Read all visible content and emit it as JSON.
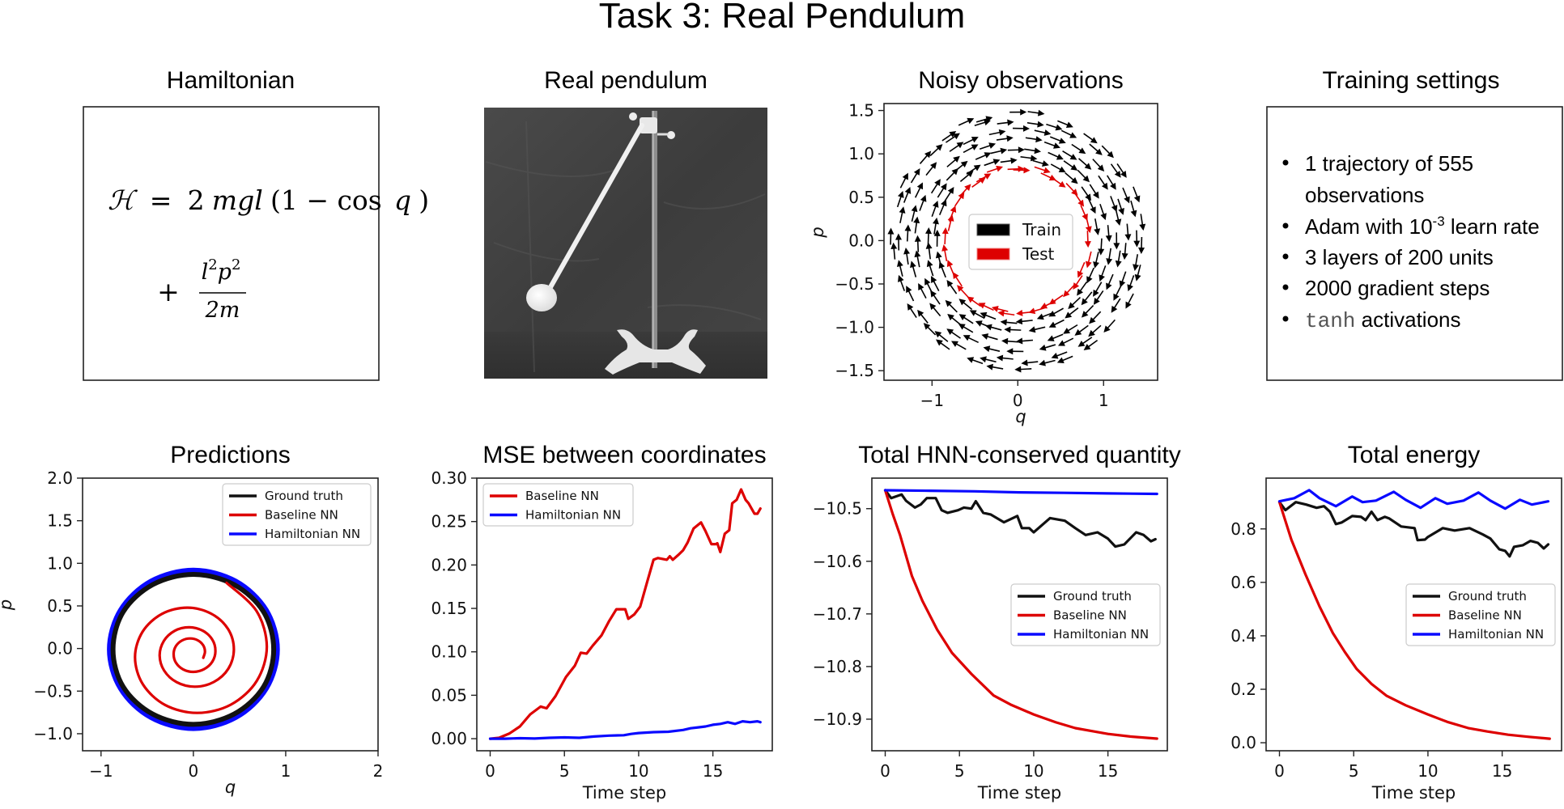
{
  "figure": {
    "suptitle": "Task 3: Real Pendulum"
  },
  "panels": {
    "hamiltonian": {
      "title": "Hamiltonian",
      "formula": {
        "line1": {
          "lhs": "ℋ",
          "eq": "=",
          "two": "2",
          "vars": "mgl",
          "open": "(1 − ",
          "cos": "cos",
          "q": "q",
          "close": ")"
        },
        "line2": {
          "plus": "+",
          "numerator_l": "l",
          "numerator_l_exp": "2",
          "numerator_p": "p",
          "numerator_p_exp": "2",
          "denominator": "2m"
        }
      }
    },
    "real_pendulum": {
      "title": "Real pendulum",
      "image_alt": "Photo of a real pendulum on a stand"
    },
    "training_settings": {
      "title": "Training settings",
      "items": [
        {
          "text": "1 trajectory of 555",
          "continuation": "observations"
        },
        {
          "text": "Adam with 10",
          "sup": "-3",
          "after": " learn rate"
        },
        {
          "text": "3 layers of 200 units"
        },
        {
          "text": "2000 gradient steps"
        },
        {
          "mono": "tanh",
          "after": " activations"
        }
      ]
    }
  },
  "colors": {
    "ground_truth": "#111111",
    "baseline": "#dd0000",
    "hamiltonian": "#0a0aff",
    "train": "#000000",
    "test": "#dd0000"
  },
  "chart_data": [
    {
      "id": "noisy",
      "type": "quiver",
      "title": "Noisy observations",
      "xlabel": "q",
      "ylabel": "p",
      "xlim": [
        -1.56,
        1.63
      ],
      "ylim": [
        -1.61,
        1.58
      ],
      "xticks": [
        -1,
        0,
        1
      ],
      "xtick_labels": [
        "−1",
        "0",
        "1"
      ],
      "yticks": [
        1.5,
        1.0,
        0.5,
        0.0,
        -0.5,
        -1.0,
        -1.5
      ],
      "ytick_labels": [
        "1.5",
        "1.0",
        "0.5",
        "0.0",
        "−0.5",
        "−1.0",
        "−1.5"
      ],
      "legend": {
        "position": "center",
        "entries": [
          "Train",
          "Test"
        ]
      },
      "series": [
        {
          "name": "Train",
          "color_key": "train",
          "ring_radii": [
            0.95,
            1.06,
            1.17,
            1.28,
            1.39,
            1.47
          ],
          "arrows_per_ring": 30
        },
        {
          "name": "Test",
          "color_key": "test",
          "ring_radii": [
            0.84
          ],
          "arrows_per_ring": 34
        }
      ]
    },
    {
      "id": "predictions",
      "type": "line",
      "title": "Predictions",
      "xlabel": "q",
      "ylabel": "p",
      "xlim": [
        -1.2,
        2.0
      ],
      "ylim": [
        -1.2,
        2.0
      ],
      "xticks": [
        -1,
        0,
        1,
        2
      ],
      "xtick_labels": [
        "−1",
        "0",
        "1",
        "2"
      ],
      "yticks": [
        2.0,
        1.5,
        1.0,
        0.5,
        0.0,
        -0.5,
        -1.0
      ],
      "ytick_labels": [
        "2.0",
        "1.5",
        "1.0",
        "0.5",
        "0.0",
        "−0.5",
        "−1.0"
      ],
      "legend": {
        "position": "top-right",
        "entries": [
          "Ground truth",
          "Baseline NN",
          "Hamiltonian NN"
        ]
      },
      "series": [
        {
          "name": "Hamiltonian NN",
          "color_key": "hamiltonian",
          "closed": true,
          "width": 6,
          "points": [
            [
              0.91,
              -0.01
            ],
            [
              0.79,
              0.45
            ],
            [
              0.46,
              0.79
            ],
            [
              0.0,
              0.92
            ],
            [
              -0.46,
              0.79
            ],
            [
              -0.79,
              0.45
            ],
            [
              -0.91,
              -0.01
            ],
            [
              -0.79,
              -0.47
            ],
            [
              -0.46,
              -0.81
            ],
            [
              0.0,
              -0.94
            ],
            [
              0.46,
              -0.81
            ],
            [
              0.79,
              -0.47
            ]
          ]
        },
        {
          "name": "Ground truth",
          "color_key": "ground_truth",
          "closed": true,
          "width": 6,
          "points": [
            [
              0.87,
              -0.01
            ],
            [
              0.76,
              0.43
            ],
            [
              0.44,
              0.75
            ],
            [
              0.0,
              0.87
            ],
            [
              -0.44,
              0.75
            ],
            [
              -0.76,
              0.43
            ],
            [
              -0.87,
              -0.01
            ],
            [
              -0.76,
              -0.45
            ],
            [
              -0.44,
              -0.77
            ],
            [
              0.0,
              -0.89
            ],
            [
              0.44,
              -0.77
            ],
            [
              0.76,
              -0.45
            ]
          ]
        },
        {
          "name": "Baseline NN",
          "color_key": "baseline",
          "closed": false,
          "width": 3.2,
          "points": [
            [
              0.36,
              0.77
            ],
            [
              0.683,
              0.442
            ],
            [
              0.795,
              0.021
            ],
            [
              0.687,
              -0.38
            ],
            [
              0.406,
              -0.659
            ],
            [
              0.042,
              -0.756
            ],
            [
              -0.306,
              -0.663
            ],
            [
              -0.547,
              -0.42
            ],
            [
              -0.632,
              -0.103
            ],
            [
              -0.55,
              0.197
            ],
            [
              -0.34,
              0.407
            ],
            [
              -0.066,
              0.48
            ],
            [
              0.194,
              0.409
            ],
            [
              0.376,
              0.228
            ],
            [
              0.439,
              -0.01
            ],
            [
              0.379,
              -0.236
            ],
            [
              0.221,
              -0.393
            ],
            [
              0.015,
              -0.448
            ],
            [
              -0.181,
              -0.395
            ],
            [
              -0.317,
              -0.258
            ],
            [
              -0.365,
              -0.08
            ],
            [
              -0.319,
              0.09
            ],
            [
              -0.201,
              0.208
            ],
            [
              -0.046,
              0.249
            ],
            [
              0.101,
              0.209
            ],
            [
              0.204,
              0.107
            ],
            [
              0.239,
              -0.027
            ],
            [
              0.205,
              -0.155
            ],
            [
              0.115,
              -0.243
            ],
            [
              0.0,
              -0.274
            ],
            [
              -0.111,
              -0.245
            ],
            [
              -0.188,
              -0.168
            ],
            [
              -0.214,
              -0.067
            ],
            [
              -0.189,
              0.029
            ],
            [
              -0.122,
              0.095
            ],
            [
              -0.035,
              0.118
            ],
            [
              0.048,
              0.096
            ],
            [
              0.106,
              0.038
            ],
            [
              0.126,
              -0.037
            ],
            [
              0.107,
              -0.109
            ]
          ]
        }
      ]
    },
    {
      "id": "mse",
      "type": "line",
      "title": "MSE between coordinates",
      "xlabel": "Time step",
      "ylabel": "",
      "xlim": [
        -0.9,
        19.0
      ],
      "ylim": [
        -0.0139,
        0.3
      ],
      "xticks": [
        0,
        5,
        10,
        15
      ],
      "xtick_labels": [
        "0",
        "5",
        "10",
        "15"
      ],
      "yticks": [
        0.3,
        0.25,
        0.2,
        0.15,
        0.1,
        0.05,
        0.0
      ],
      "ytick_labels": [
        "0.30",
        "0.25",
        "0.20",
        "0.15",
        "0.10",
        "0.05",
        "0.00"
      ],
      "legend": {
        "position": "top-left",
        "entries": [
          "Baseline NN",
          "Hamiltonian NN"
        ]
      },
      "series": [
        {
          "name": "Baseline NN",
          "color_key": "baseline",
          "x": [
            0,
            0.6,
            1.3,
            2.0,
            2.7,
            3.4,
            3.8,
            4.4,
            5.1,
            5.7,
            6.1,
            6.5,
            6.9,
            7.5,
            8.0,
            8.5,
            9.1,
            9.3,
            9.7,
            10.1,
            10.6,
            11.0,
            11.3,
            11.9,
            12.1,
            12.3,
            12.7,
            13.0,
            13.3,
            13.7,
            14.2,
            14.5,
            14.9,
            15.2,
            15.3,
            15.5,
            15.8,
            16.1,
            16.3,
            16.6,
            16.9,
            17.2,
            17.4,
            17.8,
            18.0,
            18.2
          ],
          "y": [
            0.0,
            0.001,
            0.006,
            0.014,
            0.028,
            0.037,
            0.035,
            0.049,
            0.071,
            0.084,
            0.099,
            0.098,
            0.107,
            0.119,
            0.135,
            0.149,
            0.149,
            0.138,
            0.143,
            0.152,
            0.182,
            0.206,
            0.208,
            0.206,
            0.21,
            0.206,
            0.212,
            0.217,
            0.226,
            0.242,
            0.249,
            0.239,
            0.224,
            0.224,
            0.225,
            0.215,
            0.236,
            0.24,
            0.271,
            0.275,
            0.287,
            0.275,
            0.271,
            0.259,
            0.259,
            0.265
          ]
        },
        {
          "name": "Hamiltonian NN",
          "color_key": "hamiltonian",
          "x": [
            0,
            1,
            2,
            3,
            4,
            5,
            6,
            7,
            8,
            9,
            9.5,
            10,
            11,
            12,
            13,
            13.5,
            14,
            14.5,
            15,
            15.5,
            16,
            16.5,
            17,
            17.5,
            18,
            18.2
          ],
          "y": [
            0.0,
            0.0,
            0.0005,
            0.0002,
            0.001,
            0.0015,
            0.001,
            0.0025,
            0.0035,
            0.004,
            0.0055,
            0.0065,
            0.0075,
            0.008,
            0.01,
            0.012,
            0.013,
            0.014,
            0.016,
            0.017,
            0.019,
            0.017,
            0.02,
            0.019,
            0.02,
            0.019
          ]
        }
      ]
    },
    {
      "id": "hnn_quantity",
      "type": "line",
      "title": "Total HNN-conserved quantity",
      "xlabel": "Time step",
      "ylabel": "",
      "xlim": [
        -0.9,
        19.0
      ],
      "ylim": [
        -10.96,
        -10.442
      ],
      "xticks": [
        0,
        5,
        10,
        15
      ],
      "xtick_labels": [
        "0",
        "5",
        "10",
        "15"
      ],
      "yticks": [
        -10.5,
        -10.6,
        -10.7,
        -10.8,
        -10.9
      ],
      "ytick_labels": [
        "−10.5",
        "−10.6",
        "−10.7",
        "−10.8",
        "−10.9"
      ],
      "legend": {
        "position": "center-right",
        "entries": [
          "Ground truth",
          "Baseline NN",
          "Hamiltonian NN"
        ]
      },
      "series": [
        {
          "name": "Ground truth",
          "color_key": "ground_truth",
          "x": [
            0,
            0.4,
            1.1,
            1.4,
            2.0,
            2.4,
            2.8,
            3.4,
            3.8,
            4.2,
            4.9,
            5.3,
            5.8,
            6.1,
            6.6,
            7.1,
            8.0,
            8.9,
            9.2,
            9.7,
            10.0,
            11.1,
            12.1,
            12.8,
            13.5,
            14.3,
            15.0,
            15.5,
            16.1,
            16.9,
            17.4,
            17.9,
            18.2
          ],
          "y": [
            -10.465,
            -10.48,
            -10.473,
            -10.485,
            -10.498,
            -10.492,
            -10.48,
            -10.48,
            -10.503,
            -10.508,
            -10.503,
            -10.498,
            -10.5,
            -10.486,
            -10.508,
            -10.511,
            -10.526,
            -10.514,
            -10.537,
            -10.537,
            -10.545,
            -10.518,
            -10.523,
            -10.537,
            -10.55,
            -10.545,
            -10.557,
            -10.572,
            -10.568,
            -10.545,
            -10.55,
            -10.562,
            -10.558
          ]
        },
        {
          "name": "Baseline NN",
          "color_key": "baseline",
          "x": [
            0,
            0.5,
            1.0,
            1.8,
            2.5,
            3.5,
            4.5,
            5.8,
            7.3,
            8.5,
            10.0,
            11.5,
            12.8,
            14.0,
            15.0,
            16.5,
            18.3
          ],
          "y": [
            -10.465,
            -10.51,
            -10.55,
            -10.628,
            -10.675,
            -10.73,
            -10.774,
            -10.814,
            -10.855,
            -10.873,
            -10.891,
            -10.906,
            -10.917,
            -10.923,
            -10.928,
            -10.933,
            -10.937
          ]
        },
        {
          "name": "Hamiltonian NN",
          "color_key": "hamiltonian",
          "x": [
            0,
            3,
            6,
            9,
            12,
            15,
            18.3
          ],
          "y": [
            -10.465,
            -10.466,
            -10.467,
            -10.469,
            -10.47,
            -10.471,
            -10.472
          ]
        }
      ]
    },
    {
      "id": "energy",
      "type": "line",
      "title": "Total energy",
      "xlabel": "Time step",
      "ylabel": "",
      "xlim": [
        -0.9,
        19.0
      ],
      "ylim": [
        -0.03,
        0.99
      ],
      "xticks": [
        0,
        5,
        10,
        15
      ],
      "xtick_labels": [
        "0",
        "5",
        "10",
        "15"
      ],
      "yticks": [
        0.8,
        0.6,
        0.4,
        0.2,
        0.0
      ],
      "ytick_labels": [
        "0.8",
        "0.6",
        "0.4",
        "0.2",
        "0.0"
      ],
      "legend": {
        "position": "center-right",
        "entries": [
          "Ground truth",
          "Baseline NN",
          "Hamiltonian NN"
        ]
      },
      "series": [
        {
          "name": "Ground truth",
          "color_key": "ground_truth",
          "x": [
            0,
            0.4,
            1.1,
            1.8,
            2.5,
            3.0,
            3.4,
            3.8,
            4.2,
            4.9,
            5.5,
            5.8,
            6.2,
            6.6,
            7.1,
            7.4,
            8.2,
            9.1,
            9.3,
            9.8,
            10.0,
            11.0,
            11.8,
            12.8,
            13.7,
            14.2,
            14.8,
            15.2,
            15.5,
            15.8,
            16.4,
            16.9,
            17.4,
            17.8,
            18.1
          ],
          "y": [
            0.9,
            0.87,
            0.9,
            0.891,
            0.879,
            0.885,
            0.864,
            0.818,
            0.824,
            0.848,
            0.845,
            0.833,
            0.864,
            0.833,
            0.845,
            0.839,
            0.809,
            0.803,
            0.758,
            0.76,
            0.77,
            0.803,
            0.794,
            0.803,
            0.779,
            0.764,
            0.724,
            0.718,
            0.697,
            0.733,
            0.739,
            0.755,
            0.748,
            0.727,
            0.742
          ]
        },
        {
          "name": "Baseline NN",
          "color_key": "baseline",
          "x": [
            0,
            0.8,
            1.75,
            2.7,
            3.6,
            4.4,
            5.2,
            6.2,
            7.2,
            8.5,
            10.0,
            11.3,
            12.7,
            14.0,
            15.4,
            16.8,
            18.2
          ],
          "y": [
            0.9,
            0.76,
            0.63,
            0.51,
            0.41,
            0.34,
            0.276,
            0.22,
            0.176,
            0.14,
            0.106,
            0.078,
            0.055,
            0.042,
            0.03,
            0.022,
            0.015
          ]
        },
        {
          "name": "Hamiltonian NN",
          "color_key": "hamiltonian",
          "x": [
            0,
            1.0,
            2.0,
            2.7,
            3.8,
            4.9,
            5.6,
            6.5,
            7.7,
            8.5,
            9.5,
            10.5,
            11.3,
            12.4,
            13.4,
            14.2,
            15.2,
            16.2,
            17.0,
            18.1
          ],
          "y": [
            0.903,
            0.915,
            0.945,
            0.915,
            0.885,
            0.921,
            0.9,
            0.906,
            0.939,
            0.909,
            0.879,
            0.915,
            0.894,
            0.906,
            0.936,
            0.906,
            0.876,
            0.909,
            0.891,
            0.903
          ]
        }
      ]
    }
  ]
}
